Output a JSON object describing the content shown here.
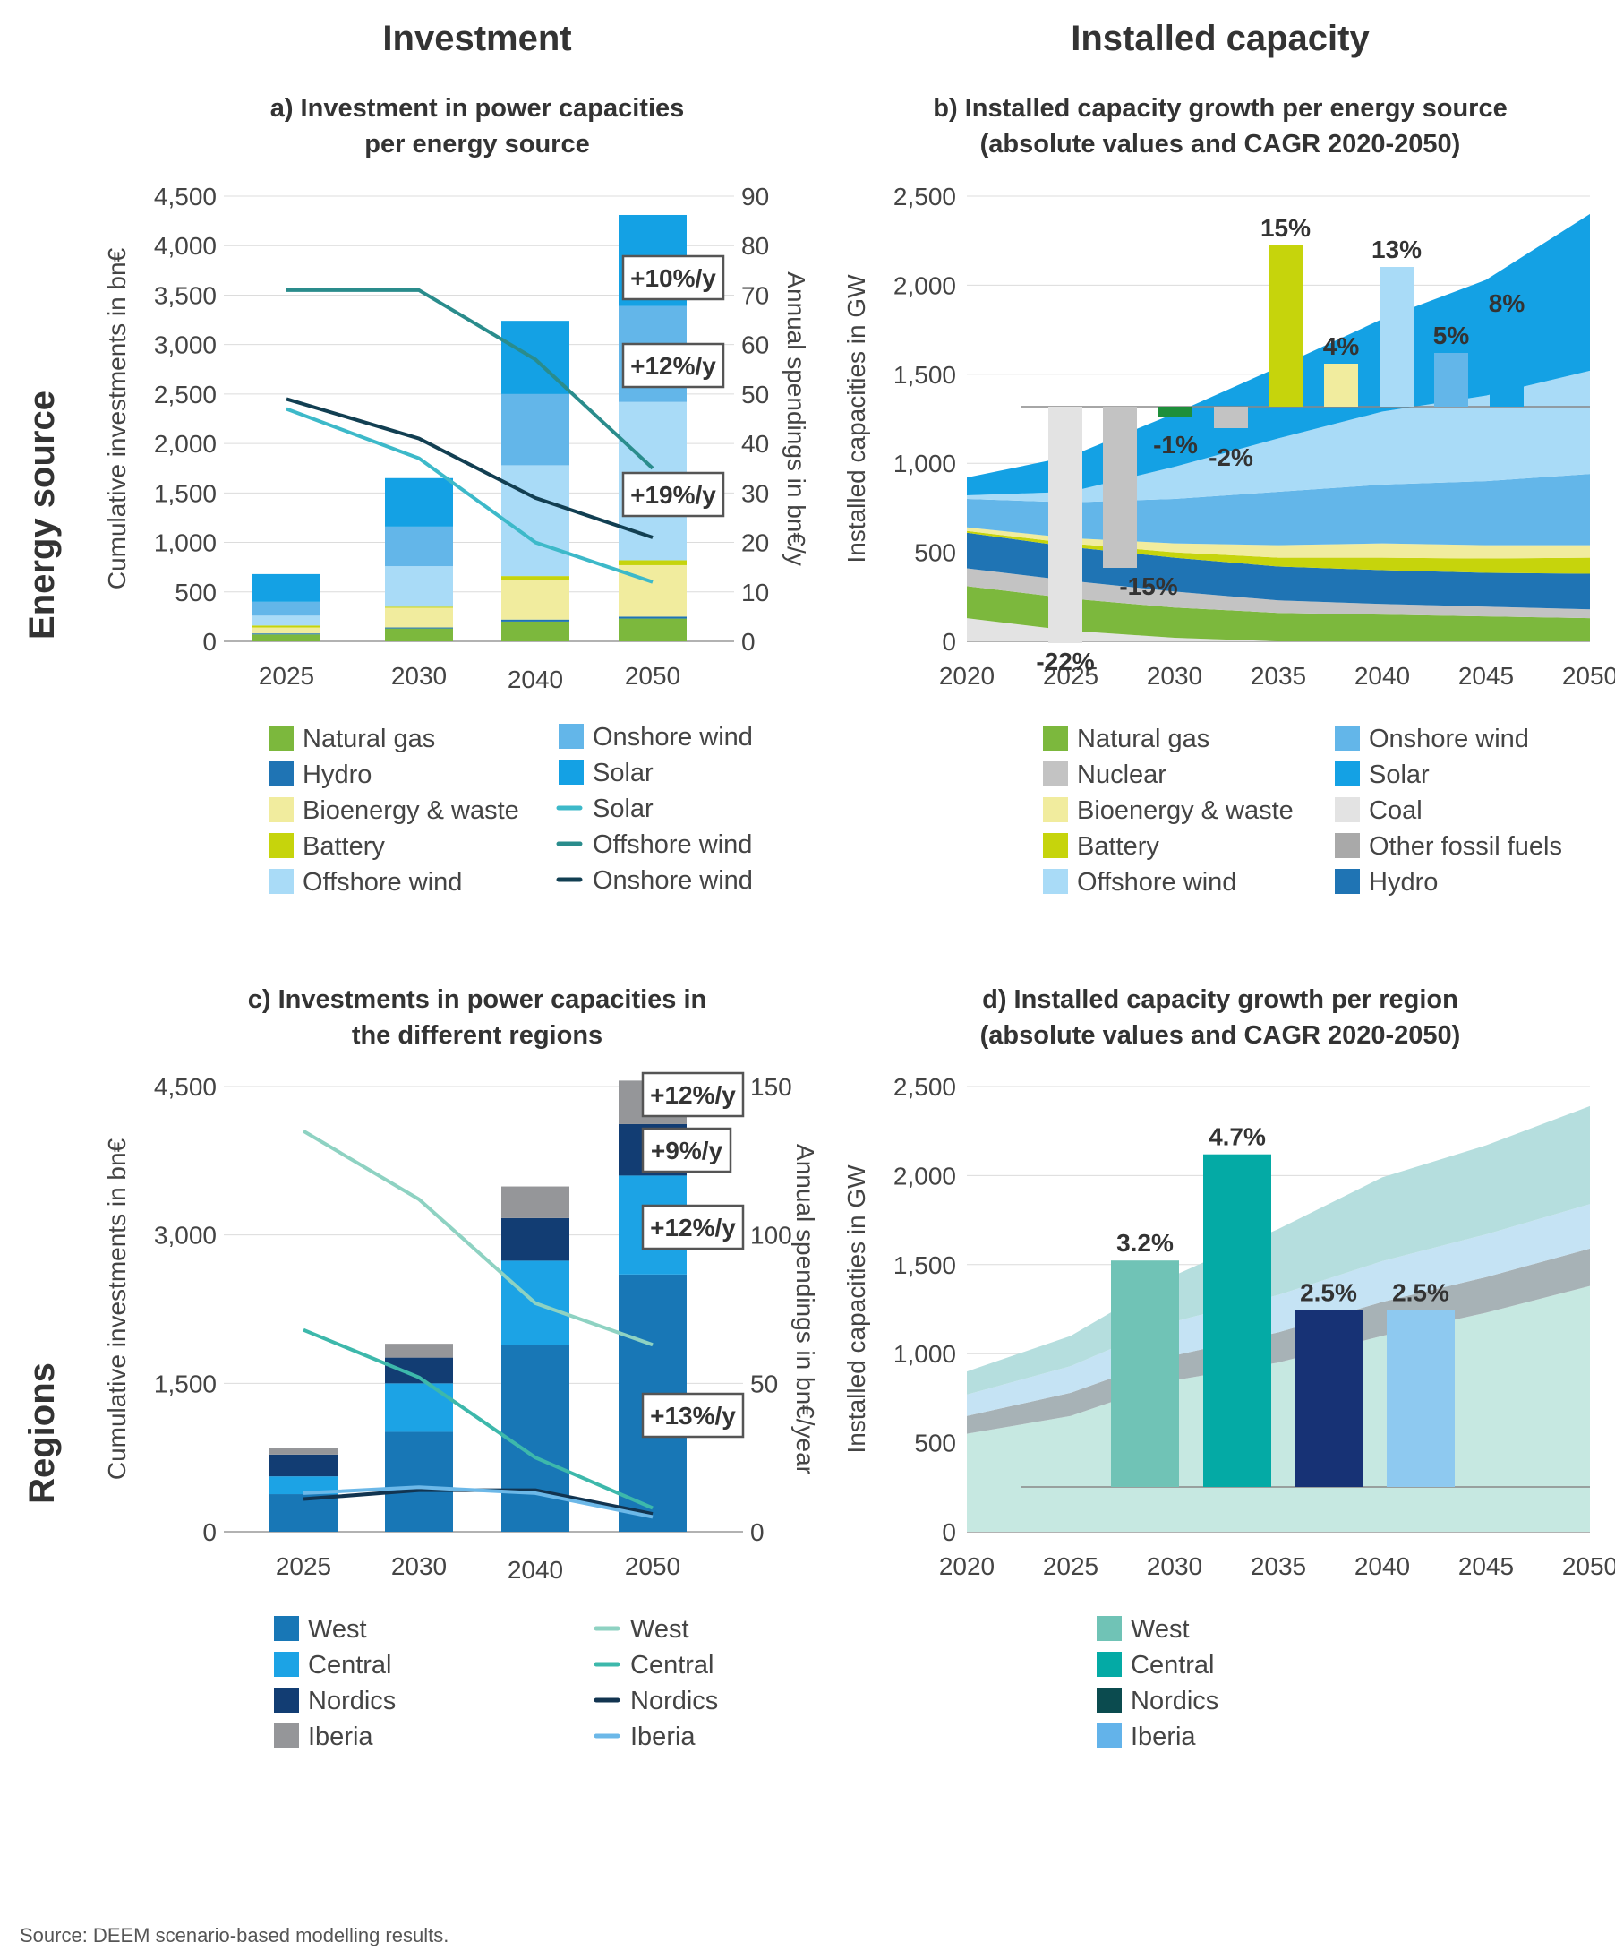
{
  "headers": {
    "col_left": "Investment",
    "col_right": "Installed capacity",
    "row_top": "Energy source",
    "row_bottom": "Regions"
  },
  "source": "Source: DEEM scenario-based modelling results.",
  "colors": {
    "natural_gas": "#7cb83d",
    "hydro": "#1f74b4",
    "bioenergy": "#f1ec9e",
    "battery": "#c6d40c",
    "offshore_wind": "#a9dbf7",
    "onshore_wind": "#63b6e9",
    "solar": "#14a1e4",
    "nuclear": "#c3c3c3",
    "coal": "#e3e3e3",
    "other_fossil": "#a9a9a9",
    "line_solar": "#3db9c9",
    "line_offshore": "#2a8c8c",
    "line_onshore": "#123f52",
    "reg_west": "#1877b6",
    "reg_central": "#1ca3e5",
    "reg_nordics": "#123d73",
    "reg_iberia": "#959699",
    "line_west": "#8ed2c2",
    "line_central": "#3db8ab",
    "line_nordics": "#123450",
    "line_iberia": "#6cb8e8",
    "regbar_west": "#70c3b6",
    "regbar_central": "#04aaa5",
    "regbar_nordics": "#173275",
    "regbar_iberia": "#8ec9f0",
    "legend_nordics": "#0b4b4f",
    "legend_iberia": "#63b3ea"
  },
  "chart_data": [
    {
      "id": "a",
      "type": "bar",
      "title": "a) Investment in power capacities\nper energy source",
      "categories": [
        "2025",
        "2030",
        "2040",
        "2050"
      ],
      "ylabel": "Cumulative investments in bn€",
      "ylim": [
        0,
        4500
      ],
      "y_ticks": [
        "0",
        "500",
        "1,000",
        "1,500",
        "2,000",
        "2,500",
        "3,000",
        "3,500",
        "4,000",
        "4,500"
      ],
      "y2label": "Annual spendings in bn€/y",
      "y2lim": [
        0,
        90
      ],
      "y2_ticks": [
        "0",
        "10",
        "20",
        "30",
        "40",
        "50",
        "60",
        "70",
        "80",
        "90"
      ],
      "stacked_series": [
        {
          "name": "Natural gas",
          "color": "#7cb83d",
          "values": [
            70,
            130,
            200,
            230
          ]
        },
        {
          "name": "Hydro",
          "color": "#1f74b4",
          "values": [
            10,
            10,
            20,
            20
          ]
        },
        {
          "name": "Bioenergy & waste",
          "color": "#f1ec9e",
          "values": [
            60,
            200,
            400,
            520
          ]
        },
        {
          "name": "Battery",
          "color": "#c6d40c",
          "values": [
            20,
            10,
            40,
            50
          ]
        },
        {
          "name": "Offshore wind",
          "color": "#a9dbf7",
          "values": [
            100,
            410,
            1120,
            1600
          ]
        },
        {
          "name": "Onshore wind",
          "color": "#63b6e9",
          "values": [
            140,
            400,
            720,
            970
          ]
        },
        {
          "name": "Solar",
          "color": "#14a1e4",
          "values": [
            280,
            490,
            740,
            920
          ]
        }
      ],
      "line_series": [
        {
          "name": "Solar",
          "color": "#3db9c9",
          "values": [
            47,
            37,
            20,
            12
          ]
        },
        {
          "name": "Offshore wind",
          "color": "#2a8c8c",
          "values": [
            71,
            71,
            57,
            35
          ]
        },
        {
          "name": "Onshore wind",
          "color": "#123f52",
          "values": [
            49,
            41,
            29,
            21
          ]
        }
      ],
      "annotations": [
        "+10%/y",
        "+12%/y",
        "+19%/y"
      ],
      "legend": [
        {
          "label": "Natural gas",
          "color": "#7cb83d",
          "kind": "box"
        },
        {
          "label": "Hydro",
          "color": "#1f74b4",
          "kind": "box"
        },
        {
          "label": "Bioenergy & waste",
          "color": "#f1ec9e",
          "kind": "box"
        },
        {
          "label": "Battery",
          "color": "#c6d40c",
          "kind": "box"
        },
        {
          "label": "Offshore wind",
          "color": "#a9dbf7",
          "kind": "box"
        },
        {
          "label": "Onshore wind",
          "color": "#63b6e9",
          "kind": "box"
        },
        {
          "label": "Solar",
          "color": "#14a1e4",
          "kind": "box"
        },
        {
          "label": "Solar",
          "color": "#3db9c9",
          "kind": "line"
        },
        {
          "label": "Offshore wind",
          "color": "#2a8c8c",
          "kind": "line"
        },
        {
          "label": "Onshore wind",
          "color": "#123f52",
          "kind": "line"
        }
      ]
    },
    {
      "id": "b",
      "type": "area",
      "title": "b) Installed capacity growth per energy source\n(absolute values and CAGR 2020-2050)",
      "x": [
        "2020",
        "2025",
        "2030",
        "2035",
        "2040",
        "2045",
        "2050"
      ],
      "ylabel": "Installed capacities in GW",
      "ylim": [
        0,
        2500
      ],
      "y_ticks": [
        "0",
        "500",
        "1,000",
        "1,500",
        "2,000",
        "2,500"
      ],
      "area_series": [
        {
          "name": "Coal",
          "color": "#e3e3e3",
          "values": [
            130,
            60,
            20,
            0,
            0,
            0,
            0
          ]
        },
        {
          "name": "Natural gas",
          "color": "#7cb83d",
          "values": [
            180,
            180,
            170,
            160,
            150,
            140,
            130
          ]
        },
        {
          "name": "Nuclear",
          "color": "#c3c3c3",
          "values": [
            100,
            100,
            90,
            70,
            60,
            55,
            50
          ]
        },
        {
          "name": "Hydro",
          "color": "#1f74b4",
          "values": [
            200,
            190,
            190,
            190,
            190,
            190,
            200
          ]
        },
        {
          "name": "Battery",
          "color": "#c6d40c",
          "values": [
            10,
            20,
            30,
            50,
            70,
            80,
            90
          ]
        },
        {
          "name": "Bioenergy & waste",
          "color": "#f1ec9e",
          "values": [
            20,
            30,
            50,
            70,
            80,
            75,
            70
          ]
        },
        {
          "name": "Onshore wind",
          "color": "#63b6e9",
          "values": [
            160,
            200,
            250,
            300,
            330,
            360,
            400
          ]
        },
        {
          "name": "Offshore wind",
          "color": "#a9dbf7",
          "values": [
            20,
            60,
            180,
            300,
            410,
            480,
            580
          ]
        },
        {
          "name": "Solar",
          "color": "#14a1e4",
          "values": [
            100,
            200,
            300,
            400,
            520,
            650,
            880
          ]
        }
      ],
      "cagr_bars": [
        {
          "label": "-22%",
          "value": -22,
          "color": "#e3e3e3"
        },
        {
          "label": "-15%",
          "value": -15,
          "color": "#c3c3c3"
        },
        {
          "label": "-1%",
          "value": -1,
          "color": "#1e8f3a"
        },
        {
          "label": "-2%",
          "value": -2,
          "color": "#c3c3c3"
        },
        {
          "label": "15%",
          "value": 15,
          "color": "#c6d40c"
        },
        {
          "label": "4%",
          "value": 4,
          "color": "#f1ec9e"
        },
        {
          "label": "13%",
          "value": 13,
          "color": "#a9dbf7"
        },
        {
          "label": "5%",
          "value": 5,
          "color": "#63b6e9"
        },
        {
          "label": "8%",
          "value": 8,
          "color": "#14a1e4"
        }
      ],
      "legend": [
        {
          "label": "Natural gas",
          "color": "#7cb83d"
        },
        {
          "label": "Nuclear",
          "color": "#c3c3c3"
        },
        {
          "label": "Bioenergy & waste",
          "color": "#f1ec9e"
        },
        {
          "label": "Battery",
          "color": "#c6d40c"
        },
        {
          "label": "Offshore wind",
          "color": "#a9dbf7"
        },
        {
          "label": "Onshore wind",
          "color": "#63b6e9"
        },
        {
          "label": "Solar",
          "color": "#14a1e4"
        },
        {
          "label": "Coal",
          "color": "#e3e3e3"
        },
        {
          "label": "Other fossil fuels",
          "color": "#a9a9a9"
        },
        {
          "label": "Hydro",
          "color": "#1f74b4"
        }
      ]
    },
    {
      "id": "c",
      "type": "bar",
      "title": "c) Investments in power capacities in\nthe different regions",
      "categories": [
        "2025",
        "2030",
        "2040",
        "2050"
      ],
      "ylabel": "Cumulative investments in bn€",
      "ylim": [
        0,
        4500
      ],
      "y_ticks": [
        "0",
        "1,500",
        "3,000",
        "4,500"
      ],
      "y2label": "Annual spendings in bn€/year",
      "y2lim": [
        0,
        150
      ],
      "y2_ticks": [
        "0",
        "50",
        "100",
        "150"
      ],
      "stacked_series": [
        {
          "name": "West",
          "color": "#1877b6",
          "values": [
            380,
            1010,
            1890,
            2600
          ]
        },
        {
          "name": "Central",
          "color": "#1ca3e5",
          "values": [
            180,
            490,
            850,
            1000
          ]
        },
        {
          "name": "Nordics",
          "color": "#123d73",
          "values": [
            220,
            260,
            430,
            520
          ]
        },
        {
          "name": "Iberia",
          "color": "#959699",
          "values": [
            70,
            140,
            320,
            440
          ]
        }
      ],
      "line_series": [
        {
          "name": "West",
          "color": "#8ed2c2",
          "values": [
            135,
            112,
            77,
            63
          ]
        },
        {
          "name": "Central",
          "color": "#3db8ab",
          "values": [
            68,
            52,
            25,
            8
          ]
        },
        {
          "name": "Nordics",
          "color": "#123450",
          "values": [
            11,
            14,
            14,
            6
          ]
        },
        {
          "name": "Iberia",
          "color": "#6cb8e8",
          "values": [
            13,
            15,
            13,
            5
          ]
        }
      ],
      "annotations": [
        "+12%/y",
        "+9%/y",
        "+12%/y",
        "+13%/y"
      ],
      "legend": [
        {
          "label": "West",
          "color": "#1877b6",
          "kind": "box"
        },
        {
          "label": "Central",
          "color": "#1ca3e5",
          "kind": "box"
        },
        {
          "label": "Nordics",
          "color": "#123d73",
          "kind": "box"
        },
        {
          "label": "Iberia",
          "color": "#959699",
          "kind": "box"
        },
        {
          "label": "West",
          "color": "#8ed2c2",
          "kind": "line"
        },
        {
          "label": "Central",
          "color": "#3db8ab",
          "kind": "line"
        },
        {
          "label": "Nordics",
          "color": "#123450",
          "kind": "line"
        },
        {
          "label": "Iberia",
          "color": "#6cb8e8",
          "kind": "line"
        }
      ]
    },
    {
      "id": "d",
      "type": "area",
      "title": "d) Installed capacity growth per region\n(absolute values and CAGR 2020-2050)",
      "x": [
        "2020",
        "2025",
        "2030",
        "2035",
        "2040",
        "2045",
        "2050"
      ],
      "ylabel": "Installed capacities in GW",
      "ylim": [
        0,
        2500
      ],
      "y_ticks": [
        "0",
        "500",
        "1,000",
        "1,500",
        "2,000",
        "2,500"
      ],
      "area_series": [
        {
          "name": "West",
          "color": "#c6e8e1",
          "values": [
            550,
            650,
            850,
            950,
            1100,
            1230,
            1380
          ]
        },
        {
          "name": "Nordics",
          "color": "#a7b2b6",
          "values": [
            100,
            130,
            140,
            170,
            190,
            200,
            210
          ]
        },
        {
          "name": "Iberia",
          "color": "#c5e3f4",
          "values": [
            120,
            150,
            190,
            210,
            230,
            240,
            250
          ]
        },
        {
          "name": "Central",
          "color": "#b5dede",
          "values": [
            130,
            170,
            260,
            370,
            470,
            500,
            550
          ]
        }
      ],
      "cagr_bars": [
        {
          "label": "3.2%",
          "value": 3.2,
          "color": "#70c3b6"
        },
        {
          "label": "4.7%",
          "value": 4.7,
          "color": "#04aaa5"
        },
        {
          "label": "2.5%",
          "value": 2.5,
          "color": "#173275"
        },
        {
          "label": "2.5%",
          "value": 2.5,
          "color": "#8ec9f0"
        }
      ],
      "legend": [
        {
          "label": "West",
          "color": "#70c3b6"
        },
        {
          "label": "Central",
          "color": "#04aaa5"
        },
        {
          "label": "Nordics",
          "color": "#0b4b4f"
        },
        {
          "label": "Iberia",
          "color": "#63b3ea"
        }
      ]
    }
  ]
}
